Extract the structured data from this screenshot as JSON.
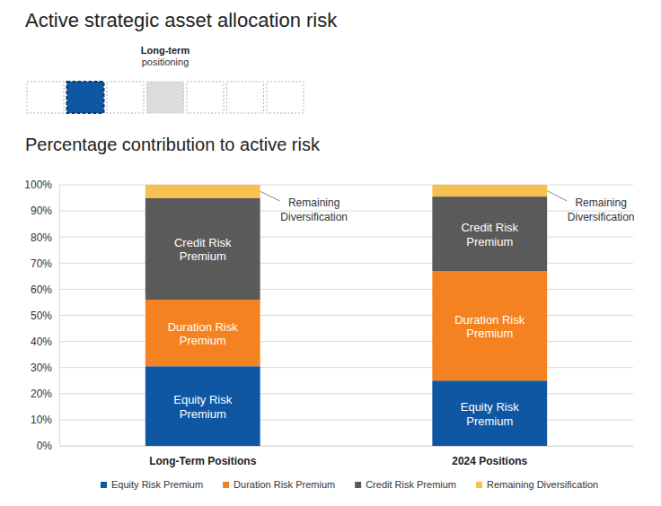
{
  "chart_data": {
    "type": "bar",
    "stacked": true,
    "title": "Active strategic asset allocation risk",
    "subtitle": "Percentage contribution to active risk",
    "annotations": [
      "Long-term",
      "positioning",
      "Remaining Diversification",
      "Remaining Diversification"
    ],
    "categories": [
      "Long-Term Positions",
      "2024 Positions"
    ],
    "series": [
      {
        "name": "Equity Risk Premium",
        "color": "#0f57a3",
        "values": [
          30.5,
          25
        ]
      },
      {
        "name": "Duration Risk Premium",
        "color": "#f58220",
        "values": [
          25.5,
          42
        ]
      },
      {
        "name": "Credit Risk Premium",
        "color": "#5a5a5a",
        "values": [
          39,
          28.5
        ]
      },
      {
        "name": "Remaining Diversification",
        "color": "#f7c14f",
        "values": [
          5,
          4.5
        ]
      }
    ],
    "ylim": [
      0,
      100
    ],
    "yticks": [
      {
        "value": 0,
        "label": "0%"
      },
      {
        "value": 10,
        "label": "10%"
      },
      {
        "value": 20,
        "label": "20%"
      },
      {
        "value": 30,
        "label": "30%"
      },
      {
        "value": 40,
        "label": "40%"
      },
      {
        "value": 50,
        "label": "50%"
      },
      {
        "value": 60,
        "label": "60%"
      },
      {
        "value": 70,
        "label": "70%"
      },
      {
        "value": 80,
        "label": "80%"
      },
      {
        "value": 90,
        "label": "90%"
      },
      {
        "value": 100,
        "label": "100%"
      }
    ],
    "grid": true,
    "legend": "bottom"
  }
}
